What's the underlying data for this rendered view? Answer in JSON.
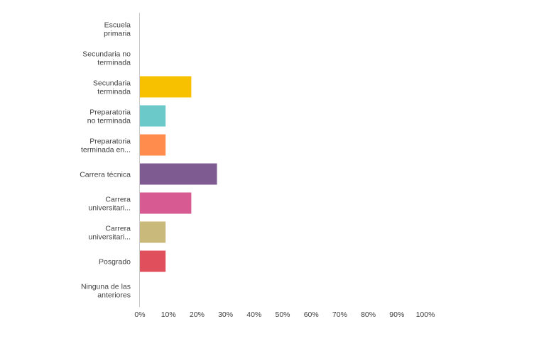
{
  "chart_data": {
    "type": "bar",
    "orientation": "horizontal",
    "categories": [
      [
        "Escuela",
        "primaria"
      ],
      [
        "Secundaria no",
        "terminada"
      ],
      [
        "Secundaria",
        "terminada"
      ],
      [
        "Preparatoria",
        "no terminada"
      ],
      [
        "Preparatoria",
        "terminada en..."
      ],
      [
        "Carrera técnica"
      ],
      [
        "Carrera",
        "universitari..."
      ],
      [
        "Carrera",
        "universitari..."
      ],
      [
        "Posgrado"
      ],
      [
        "Ninguna de las",
        "anteriores"
      ]
    ],
    "values": [
      0,
      0,
      18,
      9,
      9,
      27,
      18,
      9,
      9,
      0
    ],
    "colors": [
      "#2ba5c7",
      "#8fc44a",
      "#f7c100",
      "#6cc9c9",
      "#ff8c4d",
      "#7e5c91",
      "#d75a93",
      "#c9b97a",
      "#e0505c",
      "#999999"
    ],
    "x_ticks": [
      "0%",
      "10%",
      "20%",
      "30%",
      "40%",
      "50%",
      "60%",
      "70%",
      "80%",
      "90%",
      "100%"
    ],
    "xlim": [
      0,
      100
    ],
    "unit": "%",
    "grid": false
  }
}
